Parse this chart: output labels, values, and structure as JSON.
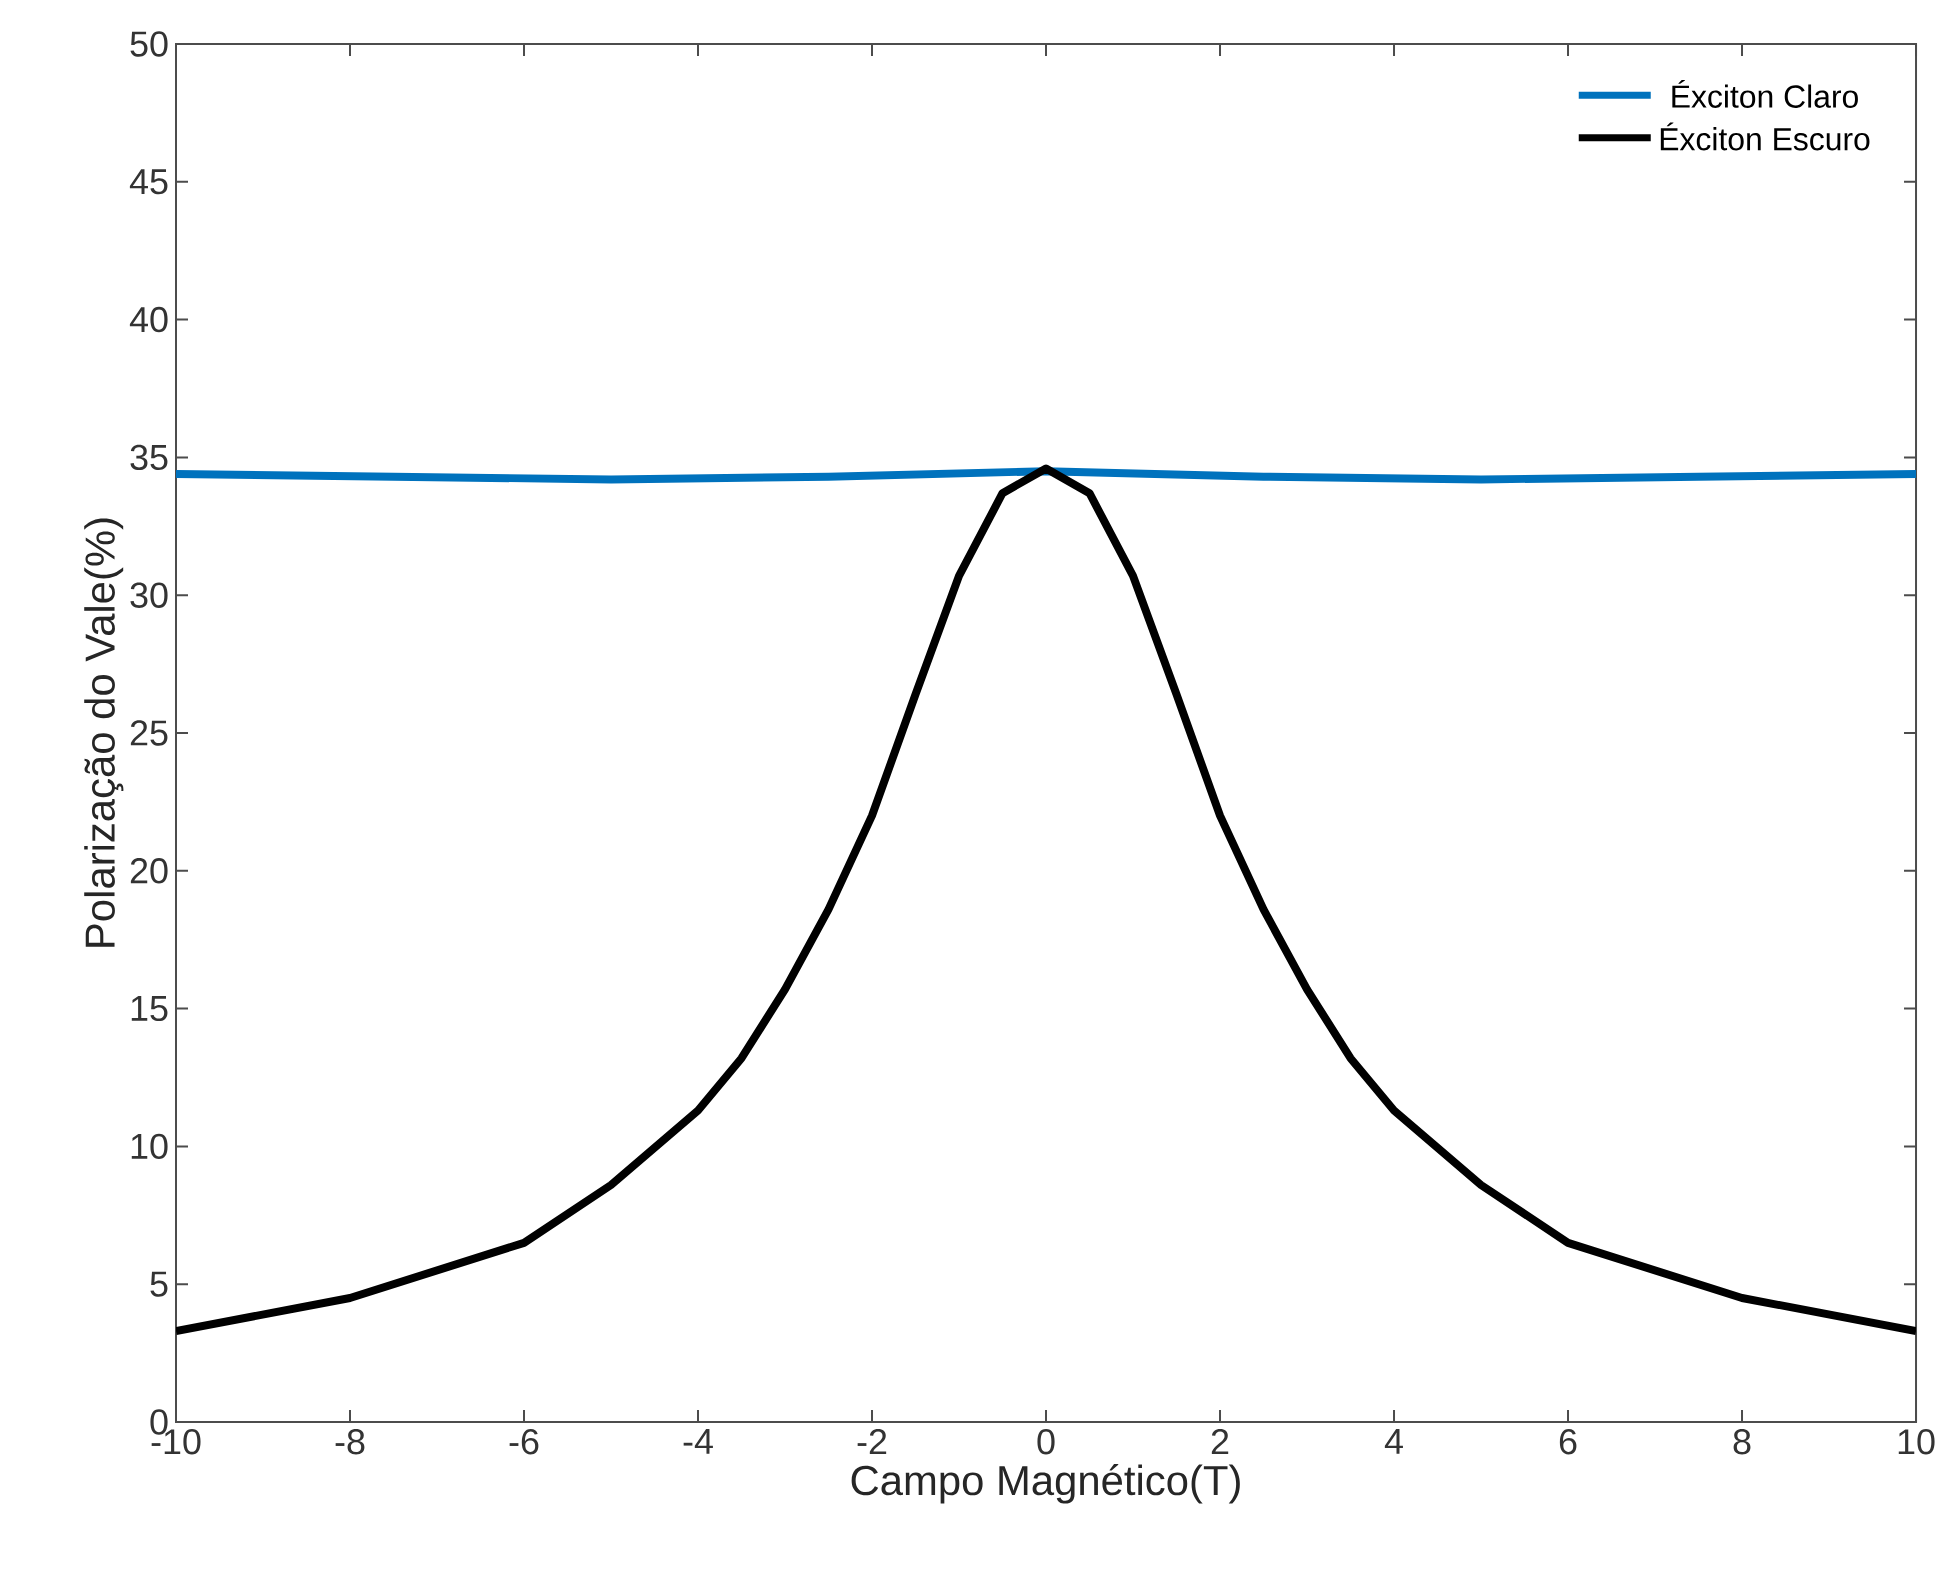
{
  "chart_data": {
    "type": "line",
    "xlabel": "Campo Magnético(T)",
    "ylabel": "Polarização do Vale(%)",
    "xlim": [
      -10,
      10
    ],
    "ylim": [
      0,
      50
    ],
    "xticks": [
      -10,
      -8,
      -6,
      -4,
      -2,
      0,
      2,
      4,
      6,
      8,
      10
    ],
    "yticks": [
      0,
      5,
      10,
      15,
      20,
      25,
      30,
      35,
      40,
      45,
      50
    ],
    "grid": false,
    "legend": "top right",
    "marker": "none",
    "line_style": "solid",
    "series": [
      {
        "name": "Éxciton Claro",
        "color": "#0072bd",
        "x": [
          -10,
          -7.5,
          -5,
          -2.5,
          0,
          2.5,
          5,
          7.5,
          10
        ],
        "values": [
          34.4,
          34.3,
          34.2,
          34.3,
          34.5,
          34.3,
          34.2,
          34.3,
          34.4
        ]
      },
      {
        "name": "Éxciton Escuro",
        "color": "#000000",
        "x": [
          -10,
          -8,
          -6,
          -5,
          -4,
          -3.5,
          -3,
          -2.5,
          -2,
          -1.5,
          -1,
          -0.5,
          0,
          0.5,
          1,
          1.5,
          2,
          2.5,
          3,
          3.5,
          4,
          5,
          6,
          8,
          10
        ],
        "values": [
          3.3,
          4.5,
          6.5,
          8.6,
          11.3,
          13.2,
          15.7,
          18.6,
          22.0,
          26.4,
          30.7,
          33.7,
          34.6,
          33.7,
          30.7,
          26.4,
          22.0,
          18.6,
          15.7,
          13.2,
          11.3,
          8.6,
          6.5,
          4.5,
          3.3
        ]
      }
    ]
  }
}
